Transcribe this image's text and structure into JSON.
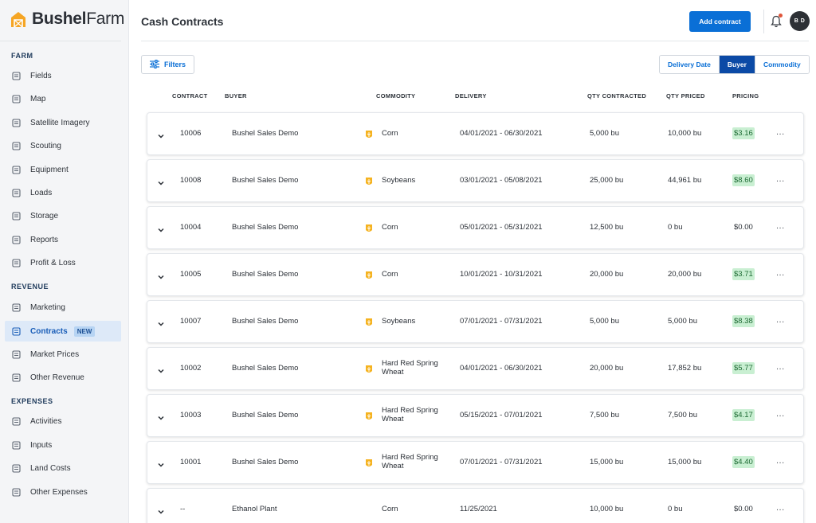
{
  "brand": {
    "name_bold": "Bushel",
    "name_light": "Farm",
    "accent": "#f5a524"
  },
  "sidebar": {
    "sections": [
      {
        "label": "FARM",
        "items": [
          {
            "label": "Fields",
            "icon": "fields-icon"
          },
          {
            "label": "Map",
            "icon": "map-icon"
          },
          {
            "label": "Satellite Imagery",
            "icon": "satellite-icon"
          },
          {
            "label": "Scouting",
            "icon": "binoculars-icon"
          },
          {
            "label": "Equipment",
            "icon": "tractor-icon"
          },
          {
            "label": "Loads",
            "icon": "truck-icon"
          },
          {
            "label": "Storage",
            "icon": "silo-icon"
          },
          {
            "label": "Reports",
            "icon": "report-icon"
          },
          {
            "label": "Profit & Loss",
            "icon": "profit-icon"
          }
        ]
      },
      {
        "label": "REVENUE",
        "items": [
          {
            "label": "Marketing",
            "icon": "marketing-icon"
          },
          {
            "label": "Contracts",
            "icon": "contract-icon",
            "active": true,
            "badge": "NEW"
          },
          {
            "label": "Market Prices",
            "icon": "market-prices-icon"
          },
          {
            "label": "Other Revenue",
            "icon": "revenue-icon"
          }
        ]
      },
      {
        "label": "EXPENSES",
        "items": [
          {
            "label": "Activities",
            "icon": "activities-icon"
          },
          {
            "label": "Inputs",
            "icon": "inputs-icon"
          },
          {
            "label": "Land Costs",
            "icon": "land-icon"
          },
          {
            "label": "Other Expenses",
            "icon": "expenses-icon"
          }
        ]
      }
    ]
  },
  "header": {
    "title": "Cash Contracts",
    "add_label": "Add contract",
    "avatar_initials": "B D"
  },
  "toolbar": {
    "filters_label": "Filters",
    "group_by": [
      "Delivery Date",
      "Buyer",
      "Commodity"
    ],
    "group_by_selected": "Buyer"
  },
  "table": {
    "columns": {
      "contract": "CONTRACT",
      "buyer": "BUYER",
      "commodity": "COMMODITY",
      "delivery": "DELIVERY",
      "qty_contracted": "QTY CONTRACTED",
      "qty_priced": "QTY PRICED",
      "pricing": "PRICING"
    },
    "rows": [
      {
        "contract": "10006",
        "buyer": "Bushel Sales Demo",
        "commodity": [
          "Corn"
        ],
        "crop_icon": true,
        "delivery": "04/01/2021 - 06/30/2021",
        "qty_contracted": "5,000 bu",
        "qty_priced": "10,000 bu",
        "pricing": "$3.16",
        "positive": true
      },
      {
        "contract": "10008",
        "buyer": "Bushel Sales Demo",
        "commodity": [
          "Soybeans"
        ],
        "crop_icon": true,
        "delivery": "03/01/2021 - 05/08/2021",
        "qty_contracted": "25,000 bu",
        "qty_priced": "44,961 bu",
        "pricing": "$8.60",
        "positive": true
      },
      {
        "contract": "10004",
        "buyer": "Bushel Sales Demo",
        "commodity": [
          "Corn"
        ],
        "crop_icon": true,
        "delivery": "05/01/2021 - 05/31/2021",
        "qty_contracted": "12,500 bu",
        "qty_priced": "0 bu",
        "pricing": "$0.00",
        "positive": false
      },
      {
        "contract": "10005",
        "buyer": "Bushel Sales Demo",
        "commodity": [
          "Corn"
        ],
        "crop_icon": true,
        "delivery": "10/01/2021 - 10/31/2021",
        "qty_contracted": "20,000 bu",
        "qty_priced": "20,000 bu",
        "pricing": "$3.71",
        "positive": true
      },
      {
        "contract": "10007",
        "buyer": "Bushel Sales Demo",
        "commodity": [
          "Soybeans"
        ],
        "crop_icon": true,
        "delivery": "07/01/2021 - 07/31/2021",
        "qty_contracted": "5,000 bu",
        "qty_priced": "5,000 bu",
        "pricing": "$8.38",
        "positive": true
      },
      {
        "contract": "10002",
        "buyer": "Bushel Sales Demo",
        "commodity": [
          "Hard Red Spring",
          "Wheat"
        ],
        "crop_icon": true,
        "delivery": "04/01/2021 - 06/30/2021",
        "qty_contracted": "20,000 bu",
        "qty_priced": "17,852 bu",
        "pricing": "$5.77",
        "positive": true
      },
      {
        "contract": "10003",
        "buyer": "Bushel Sales Demo",
        "commodity": [
          "Hard Red Spring",
          "Wheat"
        ],
        "crop_icon": true,
        "delivery": "05/15/2021 - 07/01/2021",
        "qty_contracted": "7,500 bu",
        "qty_priced": "7,500 bu",
        "pricing": "$4.17",
        "positive": true
      },
      {
        "contract": "10001",
        "buyer": "Bushel Sales Demo",
        "commodity": [
          "Hard Red Spring",
          "Wheat"
        ],
        "crop_icon": true,
        "delivery": "07/01/2021 - 07/31/2021",
        "qty_contracted": "15,000 bu",
        "qty_priced": "15,000 bu",
        "pricing": "$4.40",
        "positive": true
      },
      {
        "contract": "--",
        "buyer": "Ethanol Plant",
        "commodity": [
          "Corn"
        ],
        "crop_icon": false,
        "delivery": "11/25/2021",
        "qty_contracted": "10,000 bu",
        "qty_priced": "0 bu",
        "pricing": "$0.00",
        "positive": false
      }
    ],
    "more_label": "..."
  }
}
